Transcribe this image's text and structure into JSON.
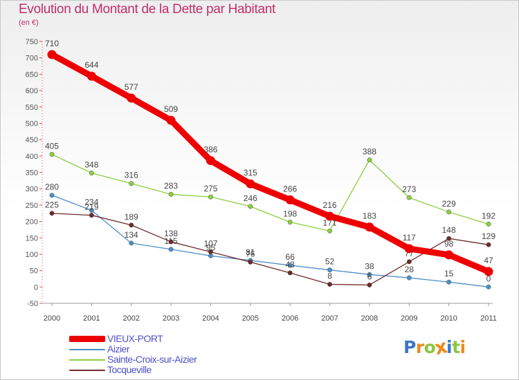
{
  "header": {
    "title": "Evolution du Montant de la Dette par Habitant",
    "subtitle": "(en €)"
  },
  "chart_data": {
    "type": "line",
    "title": "Evolution du Montant de la Dette par Habitant",
    "subtitle": "(en €)",
    "xlabel": "",
    "ylabel": "",
    "x": [
      "2000",
      "2001",
      "2002",
      "2003",
      "2004",
      "2005",
      "2006",
      "2007",
      "2008",
      "2009",
      "2010",
      "2011"
    ],
    "ylim": [
      -50,
      750
    ],
    "yticks": [
      -50,
      0,
      50,
      100,
      150,
      200,
      250,
      300,
      350,
      400,
      450,
      500,
      550,
      600,
      650,
      700,
      750
    ],
    "grid": false,
    "legend_position": "bottom-left",
    "series": [
      {
        "name": "Aizier",
        "color": "#4d8fc9",
        "values": [
          280,
          234,
          134,
          115,
          95,
          81,
          66,
          52,
          38,
          28,
          15,
          0
        ]
      },
      {
        "name": "Sainte-Croix-sur-Aizier",
        "color": "#8ccf3f",
        "values": [
          405,
          348,
          316,
          283,
          275,
          246,
          198,
          171,
          388,
          273,
          229,
          192
        ]
      },
      {
        "name": "Tocqueville",
        "color": "#6e2a2a",
        "values": [
          225,
          219,
          189,
          138,
          107,
          76,
          43,
          8,
          6,
          77,
          148,
          129
        ]
      },
      {
        "name": "VIEUX-PORT",
        "color": "#ee0000",
        "values": [
          710,
          644,
          577,
          509,
          386,
          315,
          266,
          216,
          183,
          117,
          98,
          47
        ]
      }
    ]
  },
  "legend": {
    "items": [
      {
        "label": "VIEUX-PORT",
        "color": "#ee0000"
      },
      {
        "label": "Aizier",
        "color": "#4d8fc9"
      },
      {
        "label": "Sainte-Croix-sur-Aizier",
        "color": "#8ccf3f"
      },
      {
        "label": "Tocqueville",
        "color": "#6e2a2a"
      }
    ]
  },
  "logo": {
    "letters": [
      "P",
      "r",
      "o",
      "x",
      "i",
      "t",
      "i"
    ],
    "colors": [
      "#3a78c8",
      "#f08a1c",
      "#8cc63f",
      "#f08a1c",
      "#3a78c8",
      "#8cc63f",
      "#f08a1c"
    ]
  }
}
